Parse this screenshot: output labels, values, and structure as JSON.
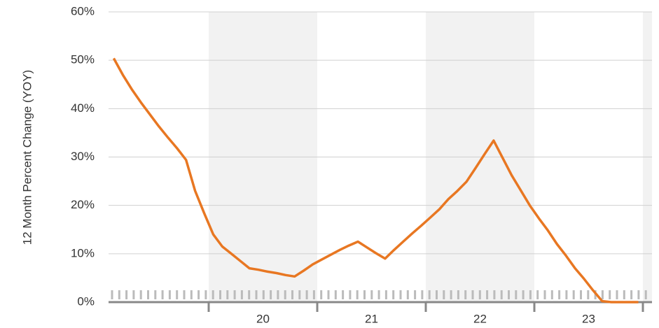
{
  "chart_data": {
    "type": "line",
    "ylabel": "12 Month Percent Change (YOY)",
    "year_labels": [
      "20",
      "21",
      "22",
      "23"
    ],
    "categories": [
      null,
      null,
      null,
      null,
      null,
      null,
      null,
      null,
      null,
      null,
      null,
      null,
      null,
      null,
      null,
      null,
      null,
      null,
      null,
      null,
      null,
      null,
      null,
      null,
      null,
      null,
      null,
      null,
      null,
      null,
      null,
      null,
      null,
      null,
      null,
      null,
      null,
      null,
      null,
      null,
      null,
      null,
      null,
      null,
      null,
      null,
      null,
      null,
      null,
      null,
      null,
      null,
      null,
      null,
      null,
      null,
      null,
      null,
      null
    ],
    "series": [
      {
        "color": "#e87722",
        "values": [
          50.4,
          47,
          44,
          41.3,
          38.8,
          36.3,
          34,
          31.8,
          29.4,
          23,
          18.4,
          14,
          11.5,
          10,
          8.5,
          7,
          6.7,
          6.3,
          6,
          5.6,
          5.3,
          6.5,
          7.8,
          8.8,
          9.8,
          10.8,
          11.7,
          12.5,
          11.3,
          10.1,
          9,
          10.8,
          12.5,
          14.2,
          15.8,
          17.5,
          19.2,
          21.3,
          23,
          24.9,
          27.7,
          30.6,
          33.4,
          29.8,
          26.2,
          23.1,
          20,
          17.3,
          14.8,
          12,
          9.6,
          7,
          4.8,
          2.4,
          0.2,
          0,
          0,
          0,
          0
        ]
      }
    ],
    "ylim": [
      0,
      60
    ],
    "yticks": [
      {
        "value": 0,
        "label": "0%"
      },
      {
        "value": 10,
        "label": "10%"
      },
      {
        "value": 20,
        "label": "20%"
      },
      {
        "value": 30,
        "label": "30%"
      },
      {
        "value": 40,
        "label": "40%"
      },
      {
        "value": 50,
        "label": "50%"
      },
      {
        "value": 60,
        "label": "60%"
      }
    ],
    "grid": true,
    "band_color": "#f2f2f2"
  }
}
